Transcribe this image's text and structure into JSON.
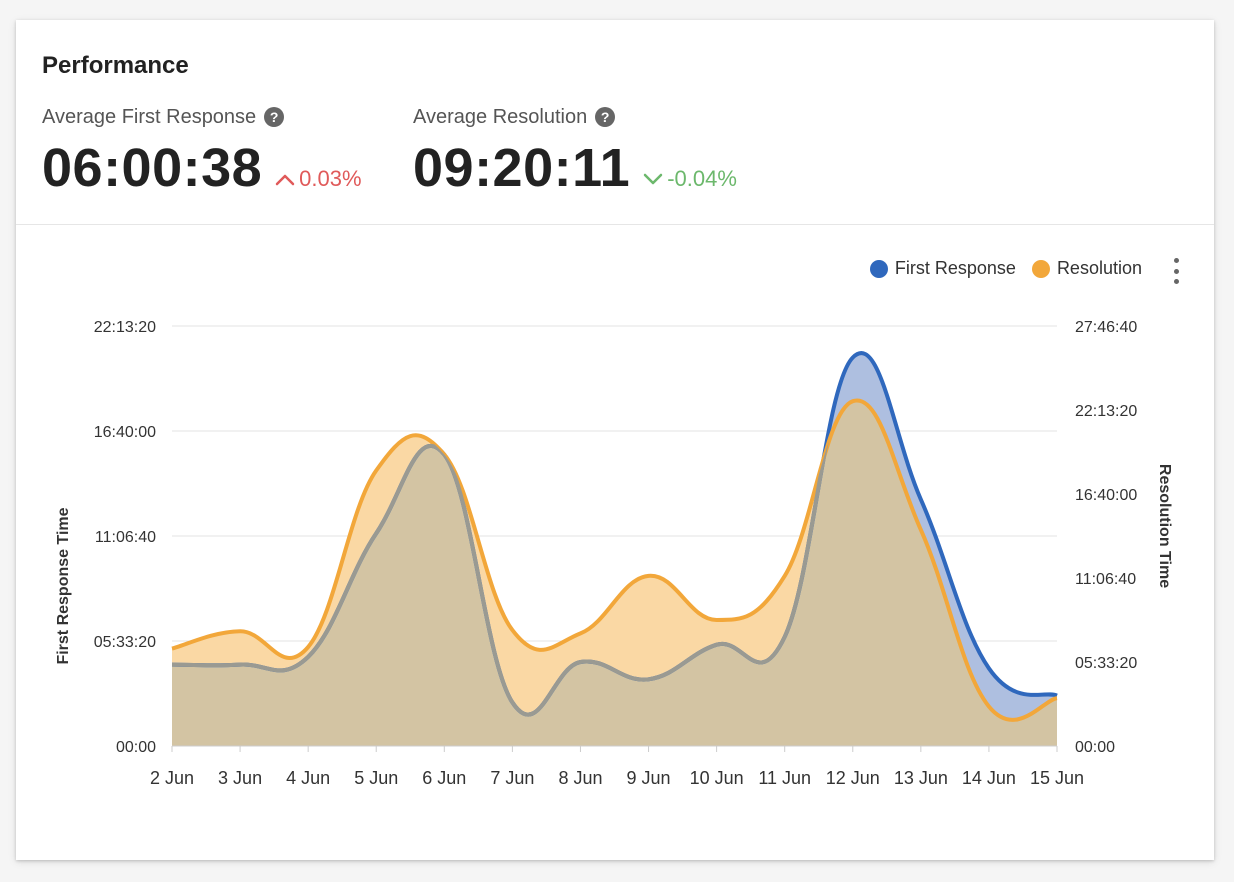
{
  "header": {
    "title": "Performance"
  },
  "metrics": {
    "first_response": {
      "label": "Average First Response",
      "value": "06:00:38",
      "delta": "0.03%",
      "trend": "up"
    },
    "resolution": {
      "label": "Average Resolution",
      "value": "09:20:11",
      "delta": "-0.04%",
      "trend": "down"
    }
  },
  "legend": {
    "first_response": "First Response",
    "resolution": "Resolution"
  },
  "colors": {
    "first_response": "#2f68bd",
    "first_response_fill": "#aebfe0",
    "resolution": "#f2a73a",
    "resolution_fill": "#fad8a4",
    "overlap_fill": "#d3c4a3",
    "overlap_line": "#9a9a92",
    "up": "#e05a5a",
    "down": "#6cb86c"
  },
  "icons": {
    "help": "question-circle-icon",
    "menu": "more-vertical-icon"
  },
  "chart_data": {
    "type": "area",
    "categories": [
      "2 Jun",
      "3 Jun",
      "4 Jun",
      "5 Jun",
      "6 Jun",
      "7 Jun",
      "8 Jun",
      "9 Jun",
      "10 Jun",
      "11 Jun",
      "12 Jun",
      "13 Jun",
      "14 Jun",
      "15 Jun"
    ],
    "y_left": {
      "label": "First Response Time",
      "ticks_seconds": [
        0,
        20000,
        40000,
        60000,
        80000
      ],
      "tick_labels": [
        "00:00",
        "05:33:20",
        "11:06:40",
        "16:40:00",
        "22:13:20"
      ],
      "range_seconds": [
        0,
        80000
      ]
    },
    "y_right": {
      "label": "Resolution Time",
      "ticks_seconds": [
        0,
        20000,
        40000,
        60000,
        80000,
        100000
      ],
      "tick_labels": [
        "00:00",
        "05:33:20",
        "11:06:40",
        "16:40:00",
        "22:13:20",
        "27:46:40"
      ],
      "range_seconds": [
        0,
        100000
      ]
    },
    "series": [
      {
        "name": "First Response",
        "axis": "left",
        "values_seconds": [
          15500,
          15500,
          17000,
          40500,
          55500,
          8300,
          16000,
          12700,
          19300,
          20800,
          74000,
          47000,
          14800,
          9600
        ]
      },
      {
        "name": "Resolution",
        "axis": "right",
        "values_seconds": [
          23200,
          27300,
          23600,
          65600,
          69400,
          27600,
          26800,
          40500,
          30000,
          40500,
          82100,
          51500,
          9400,
          11400
        ]
      }
    ],
    "grid": true,
    "legend_position": "top-right"
  }
}
